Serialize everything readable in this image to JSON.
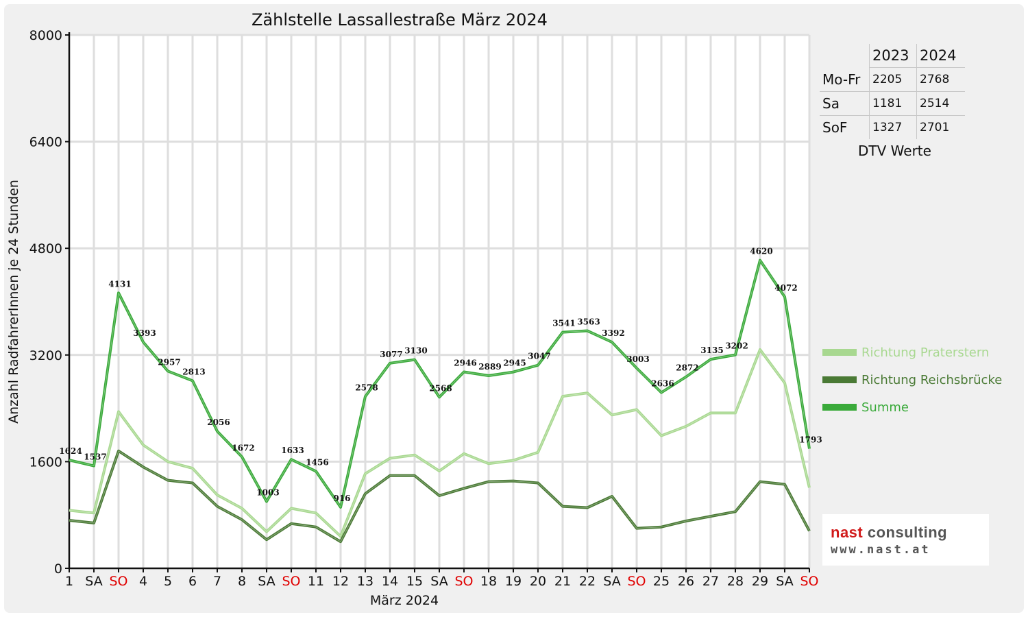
{
  "chart_data": {
    "type": "line",
    "title": "Zählstelle Lassallestraße März 2024",
    "xlabel": "März 2024",
    "ylabel": "Anzahl RadfahrerInnen je 24 Stunden",
    "ylim": [
      0,
      8000
    ],
    "yticks": [
      "0",
      "1600",
      "3200",
      "4800",
      "6400",
      "8000"
    ],
    "grid": true,
    "legend_position": "right",
    "categories": [
      "1",
      "SA",
      "SO",
      "4",
      "5",
      "6",
      "7",
      "8",
      "SA",
      "SO",
      "11",
      "12",
      "13",
      "14",
      "15",
      "SA",
      "SO",
      "18",
      "19",
      "20",
      "21",
      "22",
      "SA",
      "SO",
      "25",
      "26",
      "27",
      "28",
      "29",
      "SA",
      "SO"
    ],
    "weekend_sunday_color": "#e00000",
    "series": [
      {
        "name": "Richtung Praterstern",
        "color": "#a8d890",
        "values": [
          870,
          830,
          2350,
          1850,
          1600,
          1500,
          1100,
          900,
          550,
          900,
          830,
          480,
          1420,
          1650,
          1700,
          1460,
          1720,
          1570,
          1620,
          1740,
          2580,
          2630,
          2300,
          2380,
          1990,
          2130,
          2330,
          2330,
          3280,
          2780,
          1210
        ]
      },
      {
        "name": "Richtung Reichsbrücke",
        "color": "#4a7a35",
        "values": [
          720,
          680,
          1760,
          1520,
          1320,
          1280,
          930,
          730,
          430,
          670,
          620,
          400,
          1120,
          1390,
          1390,
          1090,
          1200,
          1300,
          1310,
          1280,
          930,
          910,
          1080,
          600,
          620,
          710,
          780,
          850,
          1300,
          1260,
          560
        ]
      },
      {
        "name": "Summe",
        "color": "#3aaa3a",
        "values": [
          1624,
          1537,
          4131,
          3393,
          2957,
          2813,
          2056,
          1672,
          1003,
          1633,
          1456,
          916,
          2578,
          3077,
          3130,
          2568,
          2946,
          2889,
          2945,
          3047,
          3541,
          3563,
          3392,
          3003,
          2636,
          2872,
          3135,
          3202,
          4620,
          4072,
          1793
        ],
        "labels": [
          "1624",
          "1537",
          "4131",
          "3393",
          "2957",
          "2813",
          "2056",
          "1672",
          "1003",
          "1633",
          "1456",
          "916",
          "2578",
          "3077",
          "3130",
          "2568",
          "2946",
          "2889",
          "2945",
          "3047",
          "3541",
          "3563",
          "3392",
          "3003",
          "2636",
          "2872",
          "3135",
          "3202",
          "4620",
          "4072",
          "1793"
        ]
      }
    ]
  },
  "dtv": {
    "columns": [
      "2023",
      "2024"
    ],
    "rows": [
      {
        "label": "Mo-Fr",
        "v2023": "2205",
        "v2024": "2768"
      },
      {
        "label": "Sa",
        "v2023": "1181",
        "v2024": "2514"
      },
      {
        "label": "SoF",
        "v2023": "1327",
        "v2024": "2701"
      }
    ],
    "caption": "DTV Werte"
  },
  "logo": {
    "name_part1": "nast",
    "name_part2": " consulting",
    "url": "www.nast.at"
  }
}
